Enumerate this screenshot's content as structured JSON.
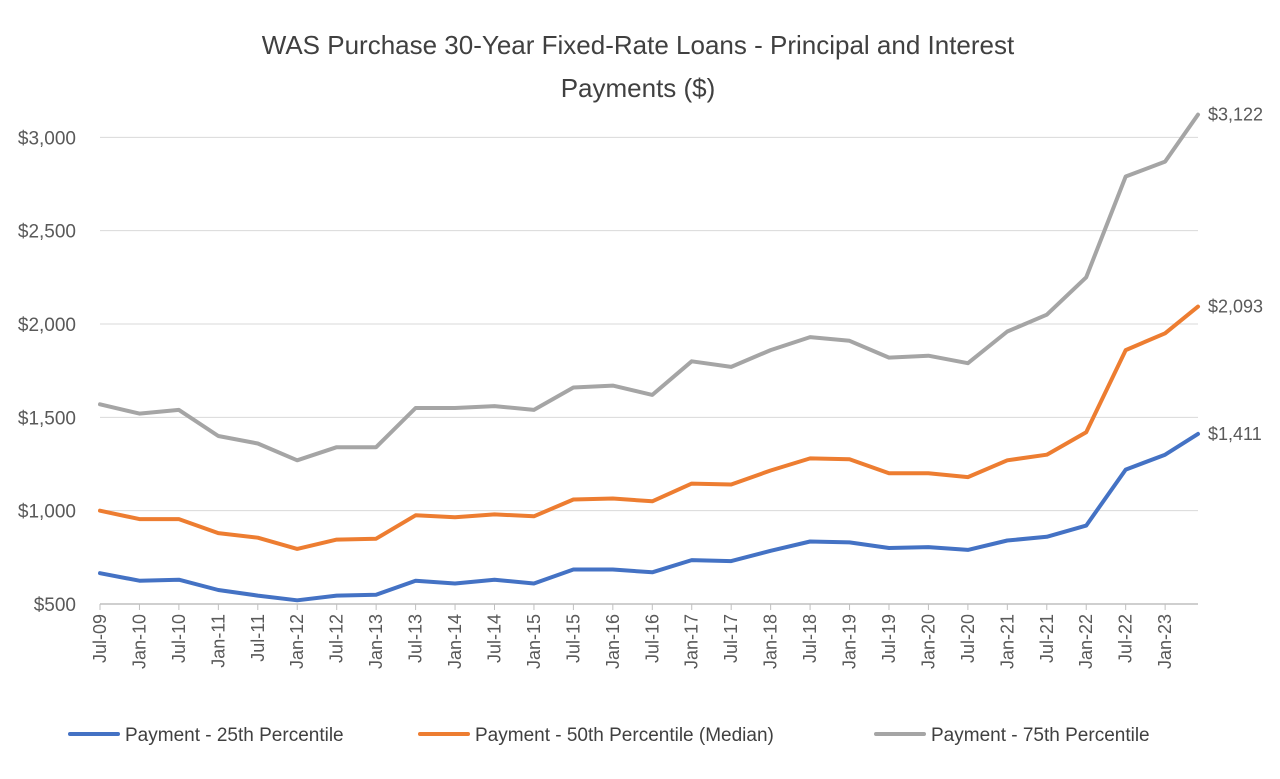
{
  "chart_data": {
    "type": "line",
    "title_lines": [
      "WAS Purchase 30-Year Fixed-Rate Loans - Principal and Interest",
      "Payments ($)"
    ],
    "xlabel": "",
    "ylabel": "",
    "ylim": [
      500,
      3200
    ],
    "y_ticks": [
      500,
      1000,
      1500,
      2000,
      2500,
      3000
    ],
    "y_tick_labels": [
      "$500",
      "$1,000",
      "$1,500",
      "$2,000",
      "$2,500",
      "$3,000"
    ],
    "x_start": "Jul-09",
    "x_end": "Jun-23",
    "x_tick_labels": [
      "Jul-09",
      "Jan-10",
      "Jul-10",
      "Jan-11",
      "Jul-11",
      "Jan-12",
      "Jul-12",
      "Jan-13",
      "Jul-13",
      "Jan-14",
      "Jul-14",
      "Jan-15",
      "Jul-15",
      "Jan-16",
      "Jul-16",
      "Jan-17",
      "Jul-17",
      "Jan-18",
      "Jul-18",
      "Jan-19",
      "Jul-19",
      "Jan-20",
      "Jul-20",
      "Jan-21",
      "Jul-21",
      "Jan-22",
      "Jul-22",
      "Jan-23"
    ],
    "grid": true,
    "legend_position": "bottom",
    "series": [
      {
        "name": "Payment - 25th Percentile",
        "color": "#4472C4",
        "end_label": "$1,411",
        "points": [
          [
            "Jul-09",
            665
          ],
          [
            "Jan-10",
            625
          ],
          [
            "Jul-10",
            630
          ],
          [
            "Jan-11",
            575
          ],
          [
            "Jul-11",
            545
          ],
          [
            "Jan-12",
            520
          ],
          [
            "Jul-12",
            545
          ],
          [
            "Jan-13",
            550
          ],
          [
            "Jul-13",
            625
          ],
          [
            "Jan-14",
            610
          ],
          [
            "Jul-14",
            630
          ],
          [
            "Jan-15",
            610
          ],
          [
            "Jul-15",
            685
          ],
          [
            "Jan-16",
            685
          ],
          [
            "Jul-16",
            670
          ],
          [
            "Jan-17",
            735
          ],
          [
            "Jul-17",
            730
          ],
          [
            "Jan-18",
            785
          ],
          [
            "Jul-18",
            835
          ],
          [
            "Jan-19",
            830
          ],
          [
            "Jul-19",
            800
          ],
          [
            "Jan-20",
            805
          ],
          [
            "Jul-20",
            790
          ],
          [
            "Jan-21",
            840
          ],
          [
            "Jul-21",
            860
          ],
          [
            "Jan-22",
            920
          ],
          [
            "Jul-22",
            1220
          ],
          [
            "Jan-23",
            1300
          ],
          [
            "Jun-23",
            1411
          ]
        ]
      },
      {
        "name": "Payment - 50th Percentile (Median)",
        "color": "#ED7D31",
        "end_label": "$2,093",
        "points": [
          [
            "Jul-09",
            1000
          ],
          [
            "Jan-10",
            955
          ],
          [
            "Jul-10",
            955
          ],
          [
            "Jan-11",
            880
          ],
          [
            "Jul-11",
            855
          ],
          [
            "Jan-12",
            795
          ],
          [
            "Jul-12",
            845
          ],
          [
            "Jan-13",
            850
          ],
          [
            "Jul-13",
            975
          ],
          [
            "Jan-14",
            965
          ],
          [
            "Jul-14",
            980
          ],
          [
            "Jan-15",
            970
          ],
          [
            "Jul-15",
            1060
          ],
          [
            "Jan-16",
            1065
          ],
          [
            "Jul-16",
            1050
          ],
          [
            "Jan-17",
            1145
          ],
          [
            "Jul-17",
            1140
          ],
          [
            "Jan-18",
            1215
          ],
          [
            "Jul-18",
            1280
          ],
          [
            "Jan-19",
            1275
          ],
          [
            "Jul-19",
            1200
          ],
          [
            "Jan-20",
            1200
          ],
          [
            "Jul-20",
            1180
          ],
          [
            "Jan-21",
            1270
          ],
          [
            "Jul-21",
            1300
          ],
          [
            "Jan-22",
            1420
          ],
          [
            "Jul-22",
            1860
          ],
          [
            "Jan-23",
            1950
          ],
          [
            "Jun-23",
            2093
          ]
        ]
      },
      {
        "name": "Payment - 75th Percentile",
        "color": "#A5A5A5",
        "end_label": "$3,122",
        "points": [
          [
            "Jul-09",
            1570
          ],
          [
            "Jan-10",
            1520
          ],
          [
            "Jul-10",
            1540
          ],
          [
            "Jan-11",
            1400
          ],
          [
            "Jul-11",
            1360
          ],
          [
            "Jan-12",
            1270
          ],
          [
            "Jul-12",
            1340
          ],
          [
            "Jan-13",
            1340
          ],
          [
            "Jul-13",
            1550
          ],
          [
            "Jan-14",
            1550
          ],
          [
            "Jul-14",
            1560
          ],
          [
            "Jan-15",
            1540
          ],
          [
            "Jul-15",
            1660
          ],
          [
            "Jan-16",
            1670
          ],
          [
            "Jul-16",
            1620
          ],
          [
            "Jan-17",
            1800
          ],
          [
            "Jul-17",
            1770
          ],
          [
            "Jan-18",
            1860
          ],
          [
            "Jul-18",
            1930
          ],
          [
            "Jan-19",
            1910
          ],
          [
            "Jul-19",
            1820
          ],
          [
            "Jan-20",
            1830
          ],
          [
            "Jul-20",
            1790
          ],
          [
            "Jan-21",
            1960
          ],
          [
            "Jul-21",
            2050
          ],
          [
            "Jan-22",
            2250
          ],
          [
            "Jul-22",
            2790
          ],
          [
            "Jan-23",
            2870
          ],
          [
            "Jun-23",
            3122
          ]
        ]
      }
    ]
  }
}
